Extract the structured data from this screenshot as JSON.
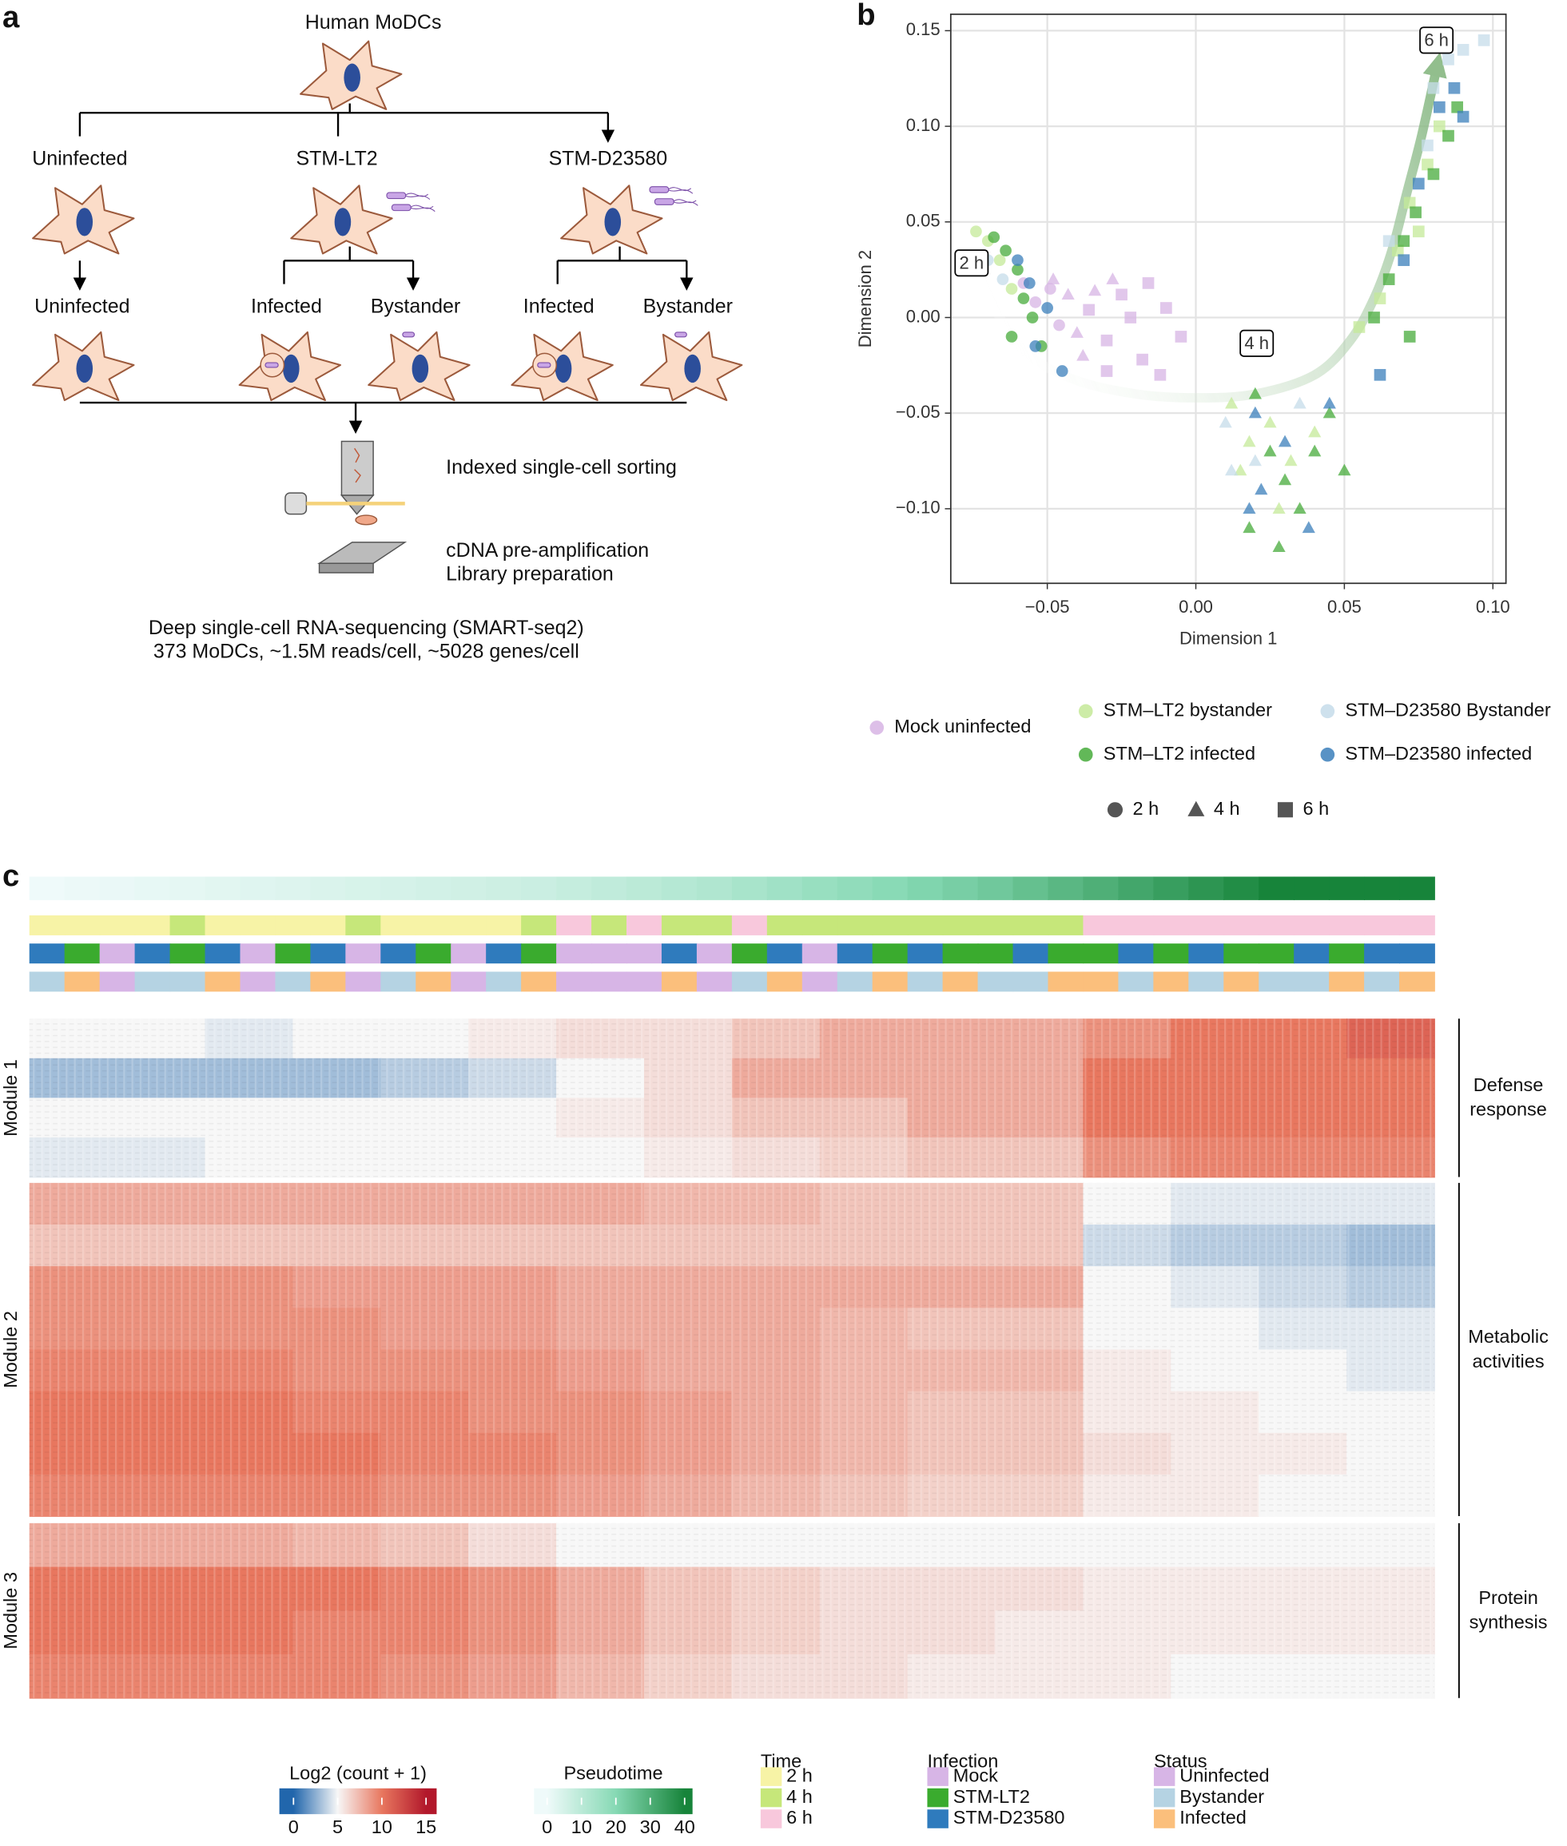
{
  "panel_labels": [
    "a",
    "b",
    "c"
  ],
  "diagram": {
    "top": "Human MoDCs",
    "branches": [
      "Uninfected",
      "STM-LT2",
      "STM-D23580"
    ],
    "leaves": [
      "Uninfected",
      "Infected",
      "Bystander",
      "Infected",
      "Bystander"
    ],
    "steps": [
      "Indexed single-cell sorting",
      "cDNA pre-amplification",
      "Library preparation"
    ],
    "summary": [
      "Deep single-cell RNA-sequencing (SMART-seq2)",
      "373 MoDCs, ~1.5M reads/cell, ~5028 genes/cell"
    ]
  },
  "chart_data": [
    {
      "type": "scatter",
      "xlabel": "Dimension 1",
      "ylabel": "Dimension 2",
      "xlim": [
        -0.0825,
        0.1044
      ],
      "ylim": [
        -0.139,
        0.1586
      ],
      "xticks": [
        {
          "value": -0.05,
          "label": "−0.05"
        },
        {
          "value": 0,
          "label": "0.00"
        },
        {
          "value": 0.05,
          "label": "0.05"
        },
        {
          "value": 0.1,
          "label": "0.10"
        }
      ],
      "yticks": [
        {
          "value": -0.1,
          "label": "−0.10"
        },
        {
          "value": -0.05,
          "label": "−0.05"
        },
        {
          "value": 0,
          "label": "0.00"
        },
        {
          "value": 0.05,
          "label": "0.05"
        },
        {
          "value": 0.1,
          "label": "0.10"
        },
        {
          "value": 0.15,
          "label": "0.15"
        }
      ],
      "grid": true,
      "shape_legend": {
        "labels": [
          "2 h",
          "4 h",
          "6 h"
        ],
        "shapes": [
          "circle",
          "triangle",
          "square"
        ]
      },
      "series": [
        {
          "name": "Mock uninfected",
          "color": "#d7b4e4",
          "x": [
            -0.058,
            -0.054,
            -0.049,
            -0.046,
            -0.043,
            -0.048,
            -0.04,
            -0.034,
            -0.028,
            -0.038,
            -0.03,
            -0.022,
            -0.016,
            -0.01,
            -0.025,
            -0.005,
            -0.018,
            -0.03,
            -0.036,
            -0.012
          ],
          "y": [
            0.018,
            0.008,
            0.015,
            -0.004,
            0.012,
            0.02,
            -0.008,
            0.014,
            0.02,
            -0.02,
            -0.012,
            0.0,
            0.018,
            0.005,
            0.012,
            -0.01,
            -0.022,
            -0.028,
            0.004,
            -0.03
          ],
          "time": [
            "2 h",
            "2 h",
            "2 h",
            "2 h",
            "4 h",
            "4 h",
            "4 h",
            "4 h",
            "4 h",
            "4 h",
            "6 h",
            "6 h",
            "6 h",
            "6 h",
            "6 h",
            "6 h",
            "6 h",
            "6 h",
            "6 h",
            "6 h"
          ]
        },
        {
          "name": "STM–LT2 bystander",
          "color": "#c4e998",
          "x": [
            -0.074,
            -0.07,
            -0.066,
            -0.072,
            -0.062,
            0.012,
            0.018,
            0.025,
            0.032,
            0.04,
            0.028,
            0.015,
            0.055,
            0.062,
            0.068,
            0.072,
            0.078,
            0.082,
            0.075
          ],
          "y": [
            0.045,
            0.04,
            0.03,
            0.025,
            0.015,
            -0.045,
            -0.065,
            -0.055,
            -0.075,
            -0.06,
            -0.1,
            -0.08,
            -0.005,
            0.01,
            0.035,
            0.06,
            0.08,
            0.1,
            0.045
          ],
          "time": [
            "2 h",
            "2 h",
            "2 h",
            "2 h",
            "2 h",
            "4 h",
            "4 h",
            "4 h",
            "4 h",
            "4 h",
            "4 h",
            "4 h",
            "6 h",
            "6 h",
            "6 h",
            "6 h",
            "6 h",
            "6 h",
            "6 h"
          ]
        },
        {
          "name": "STM–LT2 infected",
          "color": "#47ab3b",
          "x": [
            -0.068,
            -0.064,
            -0.06,
            -0.058,
            -0.055,
            -0.062,
            -0.052,
            0.02,
            0.025,
            0.03,
            0.035,
            0.04,
            0.045,
            0.028,
            0.018,
            0.05,
            0.06,
            0.065,
            0.07,
            0.074,
            0.08,
            0.085,
            0.088,
            0.072
          ],
          "y": [
            0.042,
            0.035,
            0.025,
            0.01,
            0.0,
            -0.01,
            -0.015,
            -0.04,
            -0.07,
            -0.085,
            -0.1,
            -0.07,
            -0.05,
            -0.12,
            -0.11,
            -0.08,
            0.0,
            0.02,
            0.04,
            0.055,
            0.075,
            0.095,
            0.11,
            -0.01
          ],
          "time": [
            "2 h",
            "2 h",
            "2 h",
            "2 h",
            "2 h",
            "2 h",
            "2 h",
            "4 h",
            "4 h",
            "4 h",
            "4 h",
            "4 h",
            "4 h",
            "4 h",
            "4 h",
            "4 h",
            "6 h",
            "6 h",
            "6 h",
            "6 h",
            "6 h",
            "6 h",
            "6 h",
            "6 h"
          ]
        },
        {
          "name": "STM–D23580 Bystander",
          "color": "#c6dcea",
          "x": [
            -0.07,
            -0.065,
            0.01,
            0.012,
            0.02,
            0.035,
            0.08,
            0.085,
            0.09,
            0.097,
            0.065,
            0.078
          ],
          "y": [
            0.03,
            0.02,
            -0.055,
            -0.08,
            -0.075,
            -0.045,
            0.12,
            0.135,
            0.14,
            0.145,
            0.04,
            0.09
          ],
          "time": [
            "2 h",
            "2 h",
            "4 h",
            "4 h",
            "4 h",
            "4 h",
            "6 h",
            "6 h",
            "6 h",
            "6 h",
            "6 h",
            "6 h"
          ]
        },
        {
          "name": "STM–D23580 infected",
          "color": "#3b7fbb",
          "x": [
            -0.06,
            -0.056,
            -0.05,
            -0.054,
            -0.045,
            0.02,
            0.022,
            0.03,
            0.038,
            0.045,
            0.018,
            0.07,
            0.075,
            0.082,
            0.087,
            0.09,
            0.062
          ],
          "y": [
            0.03,
            0.018,
            0.005,
            -0.015,
            -0.028,
            -0.05,
            -0.09,
            -0.065,
            -0.11,
            -0.045,
            -0.1,
            0.03,
            0.07,
            0.11,
            0.12,
            0.105,
            -0.03
          ],
          "time": [
            "2 h",
            "2 h",
            "2 h",
            "2 h",
            "2 h",
            "4 h",
            "4 h",
            "4 h",
            "4 h",
            "4 h",
            "4 h",
            "6 h",
            "6 h",
            "6 h",
            "6 h",
            "6 h",
            "6 h"
          ]
        }
      ],
      "trajectory": {
        "color": "#7fb37a",
        "x": [
          -0.072,
          -0.066,
          -0.056,
          -0.04,
          -0.02,
          0.0,
          0.02,
          0.04,
          0.052,
          0.06,
          0.066,
          0.071,
          0.076,
          0.081
        ],
        "y": [
          0.022,
          0.0,
          -0.02,
          -0.033,
          -0.04,
          -0.042,
          -0.04,
          -0.03,
          -0.012,
          0.01,
          0.035,
          0.065,
          0.095,
          0.13
        ]
      },
      "annotations": [
        {
          "text": "2 h",
          "x": -0.0755,
          "y": 0.0285
        },
        {
          "text": "4 h",
          "x": 0.0205,
          "y": -0.0135
        },
        {
          "text": "6 h",
          "x": 0.081,
          "y": 0.145
        }
      ]
    },
    {
      "type": "heatmap",
      "pseudotime": [
        0,
        0.5,
        1,
        1.5,
        2,
        2.5,
        3,
        3.5,
        4,
        4.5,
        5,
        5.5,
        6,
        6.5,
        7,
        8,
        9,
        10,
        11,
        12,
        13.5,
        15,
        16.5,
        18,
        19.5,
        21,
        22.5,
        24,
        26,
        28,
        30,
        32,
        34,
        36,
        38,
        40,
        41,
        42,
        43,
        44
      ],
      "tracks": {
        "time": [
          "2 h",
          "2 h",
          "2 h",
          "2 h",
          "4 h",
          "2 h",
          "2 h",
          "2 h",
          "2 h",
          "4 h",
          "2 h",
          "2 h",
          "2 h",
          "2 h",
          "4 h",
          "6 h",
          "4 h",
          "6 h",
          "4 h",
          "4 h",
          "6 h",
          "4 h",
          "4 h",
          "4 h",
          "4 h",
          "4 h",
          "4 h",
          "4 h",
          "4 h",
          "4 h",
          "6 h",
          "6 h",
          "6 h",
          "6 h",
          "6 h",
          "6 h",
          "6 h",
          "6 h",
          "6 h",
          "6 h"
        ],
        "infection": [
          "STM-D23580",
          "STM-LT2",
          "Mock",
          "STM-D23580",
          "STM-LT2",
          "STM-D23580",
          "Mock",
          "STM-LT2",
          "STM-D23580",
          "Mock",
          "STM-D23580",
          "STM-LT2",
          "Mock",
          "STM-D23580",
          "STM-LT2",
          "Mock",
          "Mock",
          "Mock",
          "STM-D23580",
          "Mock",
          "STM-LT2",
          "STM-D23580",
          "Mock",
          "STM-D23580",
          "STM-LT2",
          "STM-D23580",
          "STM-LT2",
          "STM-LT2",
          "STM-D23580",
          "STM-LT2",
          "STM-LT2",
          "STM-D23580",
          "STM-LT2",
          "STM-D23580",
          "STM-LT2",
          "STM-LT2",
          "STM-D23580",
          "STM-LT2",
          "STM-D23580",
          "STM-D23580"
        ],
        "status": [
          "Bystander",
          "Infected",
          "Uninfected",
          "Bystander",
          "Bystander",
          "Infected",
          "Uninfected",
          "Bystander",
          "Infected",
          "Uninfected",
          "Bystander",
          "Infected",
          "Uninfected",
          "Bystander",
          "Infected",
          "Uninfected",
          "Uninfected",
          "Uninfected",
          "Infected",
          "Uninfected",
          "Bystander",
          "Infected",
          "Uninfected",
          "Bystander",
          "Infected",
          "Bystander",
          "Infected",
          "Bystander",
          "Bystander",
          "Infected",
          "Infected",
          "Bystander",
          "Infected",
          "Bystander",
          "Infected",
          "Bystander",
          "Bystander",
          "Infected",
          "Bystander",
          "Infected"
        ]
      },
      "modules": [
        {
          "name": "Module 1",
          "annotation": [
            "Defense",
            "response"
          ],
          "values": [
            [
              5,
              5,
              4.5,
              5,
              5,
              5.5,
              6,
              6,
              7,
              8,
              8,
              8,
              9,
              10,
              10,
              11
            ],
            [
              3,
              3,
              3,
              3,
              3.5,
              4,
              5,
              6,
              8,
              8,
              8,
              8,
              10,
              10,
              10,
              10
            ],
            [
              5,
              5,
              5,
              5,
              5,
              5,
              5.5,
              6,
              7,
              7,
              8,
              8,
              10,
              10,
              10,
              10
            ],
            [
              4.5,
              4.5,
              5,
              5,
              5,
              5,
              5,
              5.5,
              6,
              6.5,
              7,
              7,
              9,
              9.5,
              9.5,
              9.5
            ]
          ]
        },
        {
          "name": "Module 2",
          "annotation": [
            "Metabolic",
            "activities"
          ],
          "values": [
            [
              8,
              8,
              8,
              8,
              8,
              8,
              8,
              7.5,
              7.5,
              7,
              7,
              7,
              5,
              4.5,
              4.5,
              4.5
            ],
            [
              7,
              7,
              7,
              7,
              7,
              7,
              7,
              7,
              7,
              7,
              7,
              7,
              4,
              3.5,
              3.5,
              3
            ],
            [
              9,
              9,
              9,
              8.5,
              8.5,
              8.5,
              8,
              8,
              8,
              8,
              8,
              8,
              5,
              4.5,
              4,
              3.5
            ],
            [
              9,
              9,
              9,
              9,
              8.5,
              8.5,
              8,
              8,
              8,
              7.5,
              7,
              7,
              5,
              5,
              4.5,
              4.5
            ],
            [
              9.5,
              9.5,
              9.5,
              9,
              9,
              9,
              8.5,
              8,
              8,
              7.5,
              7.5,
              7.5,
              5.5,
              5,
              5,
              4.5
            ],
            [
              10,
              10,
              10,
              9.5,
              9.5,
              9,
              9,
              8.5,
              8,
              7.5,
              7,
              7,
              5.5,
              5.5,
              5,
              5
            ],
            [
              10,
              10,
              10,
              10,
              9.5,
              9.5,
              9,
              8.5,
              8,
              7.5,
              7,
              7,
              6,
              5.5,
              5.5,
              5
            ],
            [
              9.5,
              9.5,
              9.5,
              9.5,
              9,
              9,
              8.5,
              8,
              7.5,
              7,
              6.5,
              6.5,
              5.5,
              5.5,
              5,
              5
            ]
          ]
        },
        {
          "name": "Module 3",
          "annotation": [
            "Protein",
            "synthesis"
          ],
          "values": [
            [
              8,
              8,
              8,
              7.5,
              7,
              6,
              5,
              5,
              5,
              5,
              5,
              5,
              5,
              5,
              5,
              5
            ],
            [
              10,
              10,
              10,
              10,
              9.5,
              9,
              8,
              7,
              6.5,
              6,
              6,
              6,
              5.5,
              5.5,
              5.5,
              5.5
            ],
            [
              10,
              10,
              10,
              9.5,
              9.5,
              9,
              8,
              7,
              6.5,
              6,
              6,
              5.5,
              5.5,
              5.5,
              5.5,
              5.5
            ],
            [
              9.5,
              9.5,
              9.5,
              9.5,
              9,
              8.5,
              7.5,
              6.5,
              6,
              6,
              5.5,
              5.5,
              5.5,
              5,
              5,
              5
            ]
          ]
        }
      ],
      "colorbar": {
        "title": "Log2 (count + 1)",
        "lim": [
          -1.6,
          16.2
        ],
        "ticks": [
          0,
          5,
          10,
          15
        ],
        "colorscale": [
          [
            0,
            "#2166ac"
          ],
          [
            5,
            "#f7f7f7"
          ],
          [
            10,
            "#e8775f"
          ],
          [
            15,
            "#b2182b"
          ]
        ]
      },
      "pseudotime_bar": {
        "title": "Pseudotime",
        "lim": [
          -3.8,
          42.3
        ],
        "ticks": [
          0,
          10,
          20,
          30,
          40
        ],
        "colorscale": [
          [
            0,
            "#effafa"
          ],
          [
            20,
            "#86d9b4"
          ],
          [
            40,
            "#17843a"
          ]
        ]
      },
      "legends": [
        {
          "key": "time",
          "title": "Time",
          "labels": [
            "2 h",
            "4 h",
            "6 h"
          ],
          "colors": [
            "#f7f3a6",
            "#c6e77a",
            "#f8c8dc"
          ]
        },
        {
          "key": "infection",
          "title": "Infection",
          "labels": [
            "Mock",
            "STM-LT2",
            "STM-D23580"
          ],
          "colors": [
            "#d7b5e6",
            "#3aab2e",
            "#2f7bbd"
          ]
        },
        {
          "key": "status",
          "title": "Status",
          "labels": [
            "Uninfected",
            "Bystander",
            "Infected"
          ],
          "colors": [
            "#d7b5e6",
            "#b5d3e3",
            "#fbbf7c"
          ]
        }
      ]
    }
  ]
}
